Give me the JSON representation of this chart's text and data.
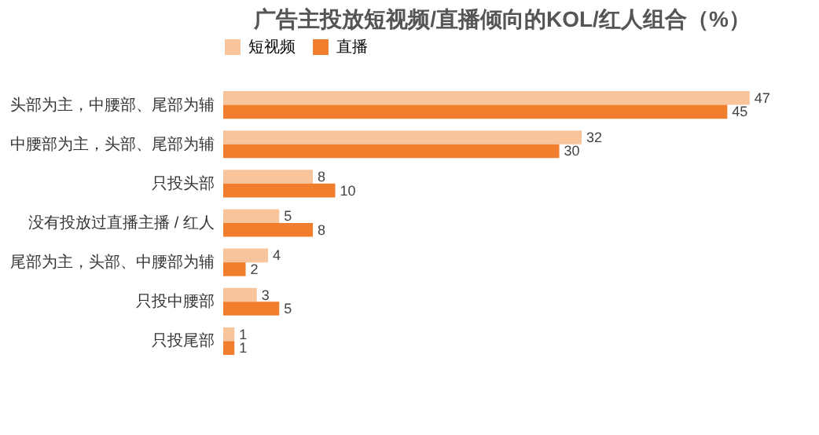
{
  "chart_data": {
    "type": "bar",
    "orientation": "horizontal",
    "title": "广告主投放短视频/直播倾向的KOL/红人组合（%）",
    "categories": [
      "头部为主，中腰部、尾部为辅",
      "中腰部为主，头部、尾部为辅",
      "只投头部",
      "没有投放过直播主播 / 红人",
      "尾部为主，头部、中腰部为辅",
      "只投中腰部",
      "只投尾部"
    ],
    "series": [
      {
        "name": "短视频",
        "color": "#f8c49c",
        "values": [
          47,
          32,
          8,
          5,
          4,
          3,
          1
        ]
      },
      {
        "name": "直播",
        "color": "#f07e2c",
        "values": [
          45,
          30,
          10,
          8,
          2,
          5,
          1
        ]
      }
    ],
    "data_labels": true,
    "legend": "top",
    "grid": false,
    "tick_labels": "y"
  }
}
